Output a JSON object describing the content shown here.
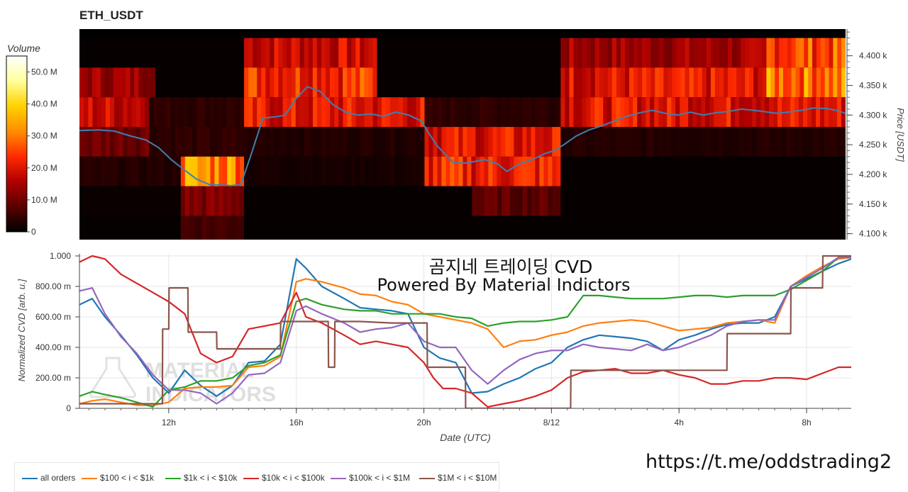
{
  "page": {
    "watermark_url": "https://t.me/oddstrading2",
    "overlay_title": "곰지네 트레이딩 CVD",
    "overlay_subtitle": "Powered By Material Indictors",
    "background_logo_text": [
      "MATERIAL",
      "INDICATORS"
    ]
  },
  "chart_data": [
    {
      "type": "heatmap",
      "title": "ETH_USDT",
      "ylabel": "Price [USDT]",
      "colorbar": {
        "title": "Volume",
        "ticks": [
          "50.0 M",
          "40.0 M",
          "30.0 M",
          "20.0 M",
          "10.0 M",
          "0"
        ],
        "tick_values": [
          50,
          40,
          30,
          20,
          10,
          0
        ],
        "range": [
          0,
          55
        ],
        "colormap": [
          "#000000",
          "#5a0000",
          "#b00000",
          "#ff2a00",
          "#ff8c00",
          "#ffd200",
          "#ffff9a",
          "#ffffff"
        ]
      },
      "y_ticks": [
        "4.400 k",
        "4.350 k",
        "4.300 k",
        "4.250 k",
        "4.200 k",
        "4.150 k",
        "4.100 k"
      ],
      "y_tick_values": [
        4400,
        4350,
        4300,
        4250,
        4200,
        4150,
        4100
      ],
      "ylim": [
        4090,
        4445
      ],
      "xlim_hours": [
        9.2,
        33.4
      ],
      "price_bins": [
        4100,
        4150,
        4200,
        4250,
        4300,
        4350,
        4400
      ],
      "volume_segments": [
        {
          "bin": 4400,
          "segments": [
            [
              9.2,
              14.4,
              0.5
            ],
            [
              14.4,
              18.6,
              18
            ],
            [
              18.6,
              24.4,
              0.5
            ],
            [
              24.4,
              30.9,
              14
            ],
            [
              30.9,
              33.4,
              26
            ]
          ]
        },
        {
          "bin": 4350,
          "segments": [
            [
              9.2,
              11.6,
              14
            ],
            [
              11.6,
              14.4,
              0.5
            ],
            [
              14.4,
              18.6,
              24
            ],
            [
              18.6,
              24.4,
              0.5
            ],
            [
              24.4,
              30.9,
              20
            ],
            [
              30.9,
              33.4,
              30
            ]
          ]
        },
        {
          "bin": 4300,
          "segments": [
            [
              9.2,
              11.4,
              18
            ],
            [
              11.4,
              14.4,
              4
            ],
            [
              14.4,
              20.1,
              20
            ],
            [
              20.1,
              24.4,
              4
            ],
            [
              24.4,
              33.4,
              20
            ]
          ]
        },
        {
          "bin": 4250,
          "segments": [
            [
              9.2,
              11.4,
              10
            ],
            [
              11.4,
              14.4,
              4
            ],
            [
              14.4,
              20.1,
              3
            ],
            [
              20.1,
              24.4,
              20
            ],
            [
              24.4,
              33.4,
              3
            ]
          ]
        },
        {
          "bin": 4200,
          "segments": [
            [
              9.2,
              12.4,
              3
            ],
            [
              12.4,
              14.4,
              32
            ],
            [
              14.4,
              20.1,
              2
            ],
            [
              20.1,
              24.4,
              22
            ],
            [
              24.4,
              33.4,
              0.5
            ]
          ]
        },
        {
          "bin": 4150,
          "segments": [
            [
              9.2,
              12.4,
              1
            ],
            [
              12.4,
              14.4,
              11
            ],
            [
              14.4,
              21.6,
              0.5
            ],
            [
              21.6,
              24.4,
              8
            ],
            [
              24.4,
              33.4,
              0.5
            ]
          ]
        },
        {
          "bin": 4100,
          "segments": [
            [
              9.2,
              12.4,
              0.5
            ],
            [
              12.4,
              14.4,
              6
            ],
            [
              14.4,
              33.4,
              0.5
            ]
          ]
        }
      ],
      "price_series": {
        "name": "",
        "color": "#3f7fb2",
        "x_hours": [
          9.2,
          9.8,
          10.3,
          10.8,
          11.3,
          11.7,
          12.1,
          12.5,
          12.9,
          13.3,
          13.7,
          14.0,
          14.3,
          14.6,
          15.0,
          15.4,
          15.7,
          16.0,
          16.4,
          16.8,
          17.2,
          17.6,
          18.0,
          18.4,
          18.8,
          19.2,
          19.6,
          20.0,
          20.2,
          20.5,
          21.0,
          21.4,
          21.7,
          22.0,
          22.4,
          22.7,
          23.1,
          23.5,
          23.9,
          24.2,
          24.5,
          24.9,
          25.3,
          25.7,
          26.1,
          26.5,
          26.9,
          27.3,
          27.7,
          28.1,
          28.5,
          28.9,
          29.3,
          29.7,
          30.1,
          30.5,
          30.8,
          31.2,
          31.6,
          32.0,
          32.4,
          32.8,
          33.1,
          33.4
        ],
        "y": [
          4274,
          4275,
          4273,
          4265,
          4258,
          4245,
          4225,
          4208,
          4192,
          4183,
          4182,
          4181,
          4183,
          4230,
          4295,
          4297,
          4300,
          4325,
          4348,
          4340,
          4318,
          4305,
          4300,
          4302,
          4298,
          4305,
          4300,
          4290,
          4272,
          4248,
          4220,
          4219,
          4222,
          4225,
          4218,
          4205,
          4218,
          4225,
          4235,
          4240,
          4250,
          4265,
          4275,
          4282,
          4290,
          4298,
          4304,
          4308,
          4303,
          4300,
          4305,
          4300,
          4304,
          4306,
          4310,
          4308,
          4306,
          4303,
          4305,
          4308,
          4312,
          4311,
          4308,
          4303
        ]
      }
    },
    {
      "type": "line",
      "title": "",
      "xlabel": "Date (UTC)",
      "ylabel": "Normalized CVD [arb. u.]",
      "y_ticks": [
        "1.000",
        "800.00 m",
        "600.00 m",
        "400.00 m",
        "200.00 m",
        "0"
      ],
      "y_tick_values": [
        1000,
        800,
        600,
        400,
        200,
        0
      ],
      "ylim": [
        0,
        1000
      ],
      "xlim_hours": [
        9.2,
        33.4
      ],
      "x_ticks": [
        "12h",
        "16h",
        "20h",
        "8/12",
        "4h",
        "8h"
      ],
      "x_tick_hours": [
        12,
        16,
        20,
        24,
        28,
        32
      ],
      "legend_position": "bottom-left",
      "series": [
        {
          "name": "all orders",
          "color": "#1f77b4",
          "x": [
            9.2,
            9.6,
            10.0,
            10.5,
            11.0,
            11.5,
            12.0,
            12.5,
            13.0,
            13.5,
            14.0,
            14.5,
            15.0,
            15.5,
            16.0,
            16.3,
            16.8,
            17.5,
            18.0,
            18.5,
            19.0,
            19.5,
            20.0,
            20.5,
            21.0,
            21.5,
            22.0,
            22.5,
            23.0,
            23.5,
            24.0,
            24.5,
            25.0,
            25.5,
            26.0,
            26.5,
            27.0,
            27.5,
            28.0,
            28.5,
            29.0,
            29.5,
            30.0,
            30.5,
            31.0,
            31.5,
            32.0,
            32.5,
            33.0,
            33.4
          ],
          "y": [
            680,
            720,
            600,
            480,
            350,
            200,
            100,
            250,
            150,
            80,
            150,
            300,
            310,
            420,
            980,
            920,
            800,
            720,
            660,
            650,
            640,
            620,
            400,
            330,
            300,
            100,
            110,
            160,
            200,
            260,
            300,
            400,
            450,
            480,
            470,
            460,
            440,
            380,
            450,
            480,
            520,
            550,
            560,
            560,
            600,
            800,
            850,
            900,
            950,
            980
          ]
        },
        {
          "name": "$100 < i < $1k",
          "color": "#ff7f0e",
          "x": [
            9.2,
            9.6,
            10.0,
            10.5,
            11.0,
            11.5,
            12.0,
            12.5,
            13.0,
            13.5,
            14.0,
            14.5,
            15.0,
            15.5,
            16.0,
            16.3,
            16.8,
            17.5,
            18.0,
            18.5,
            19.0,
            19.5,
            20.0,
            20.5,
            21.0,
            21.5,
            22.0,
            22.5,
            23.0,
            23.5,
            24.0,
            24.5,
            25.0,
            25.5,
            26.0,
            26.5,
            27.0,
            27.5,
            28.0,
            28.5,
            29.0,
            29.5,
            30.0,
            30.5,
            31.0,
            31.5,
            32.0,
            32.5,
            33.0,
            33.4
          ],
          "y": [
            30,
            50,
            60,
            40,
            20,
            20,
            40,
            130,
            140,
            140,
            150,
            270,
            280,
            340,
            830,
            850,
            830,
            790,
            750,
            740,
            700,
            680,
            620,
            600,
            580,
            560,
            520,
            400,
            440,
            450,
            480,
            500,
            540,
            560,
            570,
            580,
            570,
            540,
            510,
            520,
            530,
            560,
            570,
            580,
            560,
            800,
            870,
            930,
            980,
            990
          ]
        },
        {
          "name": "$1k < i < $10k",
          "color": "#2ca02c",
          "x": [
            9.2,
            9.6,
            10.0,
            10.5,
            11.0,
            11.5,
            12.0,
            12.5,
            13.0,
            13.5,
            14.0,
            14.5,
            15.0,
            15.5,
            16.0,
            16.3,
            16.8,
            17.5,
            18.0,
            18.5,
            19.0,
            19.5,
            20.0,
            20.5,
            21.0,
            21.5,
            22.0,
            22.5,
            23.0,
            23.5,
            24.0,
            24.5,
            25.0,
            25.5,
            26.0,
            26.5,
            27.0,
            27.5,
            28.0,
            28.5,
            29.0,
            29.5,
            30.0,
            30.5,
            31.0,
            31.5,
            32.0,
            32.5,
            33.0,
            33.4
          ],
          "y": [
            80,
            110,
            90,
            70,
            40,
            10,
            120,
            140,
            180,
            180,
            200,
            280,
            300,
            350,
            700,
            720,
            680,
            650,
            640,
            640,
            620,
            620,
            620,
            620,
            600,
            590,
            540,
            560,
            570,
            570,
            580,
            600,
            740,
            740,
            730,
            720,
            720,
            720,
            730,
            740,
            740,
            730,
            740,
            740,
            740,
            780,
            840,
            900,
            990,
            990
          ]
        },
        {
          "name": "$10k < i < $100k",
          "color": "#d62728",
          "x": [
            9.2,
            9.6,
            10.0,
            10.5,
            11.0,
            11.5,
            12.0,
            12.5,
            13.0,
            13.5,
            14.0,
            14.5,
            15.0,
            15.5,
            16.0,
            16.3,
            16.8,
            17.5,
            18.0,
            18.5,
            19.0,
            19.5,
            20.0,
            20.3,
            20.6,
            21.0,
            21.5,
            22.0,
            22.5,
            23.0,
            23.5,
            24.0,
            24.5,
            25.0,
            25.5,
            26.0,
            26.5,
            27.0,
            27.5,
            28.0,
            28.5,
            29.0,
            29.5,
            30.0,
            30.5,
            31.0,
            31.5,
            32.0,
            32.5,
            33.0,
            33.4
          ],
          "y": [
            960,
            1000,
            980,
            880,
            820,
            760,
            700,
            620,
            360,
            300,
            340,
            520,
            540,
            560,
            760,
            600,
            560,
            480,
            420,
            440,
            420,
            400,
            300,
            200,
            130,
            130,
            100,
            10,
            30,
            50,
            80,
            120,
            200,
            240,
            250,
            260,
            230,
            230,
            250,
            220,
            200,
            160,
            160,
            180,
            180,
            200,
            200,
            190,
            230,
            270,
            270
          ]
        },
        {
          "name": "$100k < i < $1M",
          "color": "#9467bd",
          "x": [
            9.2,
            9.6,
            10.0,
            10.5,
            11.0,
            11.5,
            12.0,
            12.5,
            13.0,
            13.5,
            14.0,
            14.5,
            15.0,
            15.5,
            16.0,
            16.3,
            16.8,
            17.5,
            18.0,
            18.5,
            19.0,
            19.5,
            20.0,
            20.5,
            21.0,
            21.5,
            22.0,
            22.5,
            23.0,
            23.5,
            24.0,
            24.5,
            25.0,
            25.5,
            26.0,
            26.5,
            27.0,
            27.5,
            28.0,
            28.5,
            29.0,
            29.5,
            30.0,
            30.5,
            31.0,
            31.5,
            32.0,
            32.5,
            33.0,
            33.4
          ],
          "y": [
            770,
            790,
            620,
            470,
            360,
            220,
            120,
            120,
            100,
            30,
            100,
            220,
            230,
            300,
            640,
            670,
            620,
            560,
            500,
            520,
            530,
            560,
            440,
            400,
            400,
            250,
            160,
            250,
            320,
            360,
            380,
            380,
            420,
            400,
            390,
            380,
            420,
            380,
            400,
            440,
            480,
            540,
            570,
            580,
            580,
            800,
            860,
            920,
            990,
            990
          ]
        },
        {
          "name": "$1M < i < $10M",
          "color": "#8c564b",
          "x": [
            9.2,
            10.0,
            11.0,
            11.8,
            11.81,
            12.0,
            12.01,
            12.6,
            12.61,
            13.0,
            13.5,
            13.51,
            14.0,
            15.0,
            15.5,
            15.51,
            16.0,
            16.01,
            17.0,
            17.01,
            17.2,
            17.21,
            18.0,
            19.0,
            20.0,
            20.1,
            20.11,
            21.0,
            21.3,
            21.31,
            22.0,
            23.0,
            23.5,
            24.0,
            24.5,
            24.6,
            24.61,
            26.0,
            28.0,
            29.0,
            29.5,
            29.51,
            30.0,
            31.0,
            31.5,
            31.51,
            32.0,
            32.5,
            32.51,
            33.4
          ],
          "y": [
            30,
            30,
            30,
            30,
            520,
            520,
            790,
            790,
            500,
            500,
            500,
            390,
            390,
            390,
            390,
            570,
            570,
            570,
            570,
            270,
            270,
            570,
            570,
            560,
            560,
            560,
            270,
            270,
            270,
            0,
            0,
            0,
            0,
            0,
            0,
            0,
            250,
            250,
            250,
            250,
            250,
            490,
            490,
            490,
            490,
            790,
            790,
            790,
            1000,
            1000
          ]
        }
      ]
    }
  ]
}
